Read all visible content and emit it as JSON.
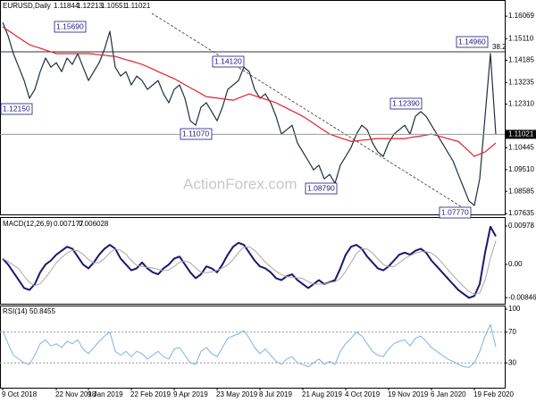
{
  "chart_data": [
    {
      "type": "line",
      "title": "EURUSD,Daily",
      "open": 1.11844,
      "high": 1.12213,
      "low": 1.10551,
      "ylim": [
        1.076,
        1.1676
      ],
      "yticks": [
        1.16069,
        {
          "value": 1.1511,
          "label": "1.15110"
        },
        1.14185,
        1.13235,
        {
          "value": 1.1231,
          "label": "1.12310"
        },
        1.10445,
        {
          "value": 1.0951,
          "label": "1.09510"
        },
        1.08585,
        1.07635
      ],
      "series": [
        {
          "color": "#1f2f3f",
          "values": [
            1.158,
            1.1523,
            1.1447,
            1.1389,
            1.1332,
            1.1256,
            1.1294,
            1.137,
            1.1428,
            1.1389,
            1.1408,
            1.137,
            1.1428,
            1.1401,
            1.1447,
            1.1389,
            1.1332,
            1.137,
            1.1408,
            1.1466,
            1.1542,
            1.1389,
            1.1351,
            1.137,
            1.1313,
            1.1351,
            1.1332,
            1.1294,
            1.1313,
            1.1332,
            1.1275,
            1.1237,
            1.1294,
            1.1313,
            1.1256,
            1.116,
            1.1141,
            1.1218,
            1.1237,
            1.1199,
            1.116,
            1.1218,
            1.1294,
            1.1313,
            1.1332,
            1.1389,
            1.137,
            1.1294,
            1.1256,
            1.1275,
            1.1237,
            1.1179,
            1.1103,
            1.1122,
            1.1141,
            1.1065,
            1.1027,
            1.0989,
            1.095,
            1.097,
            1.0912,
            1.0931,
            1.0893,
            1.097,
            1.1008,
            1.1046,
            1.1103,
            1.1141,
            1.1122,
            1.1065,
            1.1027,
            1.1008,
            1.1065,
            1.1103,
            1.1122,
            1.1141,
            1.1103,
            1.1179,
            1.1199,
            1.1179,
            1.1141,
            1.1103,
            1.1065,
            1.1027,
            1.0989,
            1.0931,
            1.0874,
            1.0817,
            1.0798,
            1.0912,
            1.1179,
            1.1447,
            1.11021
          ]
        },
        {
          "color": "#e8202a",
          "values": [
            1.1561,
            1.1546,
            1.1531,
            1.1515,
            1.15,
            1.1485,
            1.1477,
            1.147,
            1.1462,
            1.1455,
            1.1447,
            1.1447,
            1.1447,
            1.1447,
            1.1447,
            1.1447,
            1.1447,
            1.1445,
            1.1442,
            1.144,
            1.1437,
            1.1435,
            1.1428,
            1.1421,
            1.1415,
            1.1408,
            1.1401,
            1.1391,
            1.1381,
            1.137,
            1.136,
            1.135,
            1.134,
            1.1327,
            1.1314,
            1.1301,
            1.1289,
            1.1276,
            1.1263,
            1.126,
            1.1257,
            1.1254,
            1.1251,
            1.1248,
            1.1257,
            1.1266,
            1.1275,
            1.1267,
            1.126,
            1.1252,
            1.1245,
            1.1237,
            1.1225,
            1.1214,
            1.1202,
            1.1191,
            1.1179,
            1.1164,
            1.1149,
            1.1133,
            1.1118,
            1.1103,
            1.1095,
            1.1087,
            1.108,
            1.1072,
            1.1074,
            1.1077,
            1.1079,
            1.1082,
            1.1084,
            1.1084,
            1.1084,
            1.1084,
            1.1084,
            1.1084,
            1.1088,
            1.1092,
            1.1095,
            1.1099,
            1.1103,
            1.1097,
            1.1091,
            1.1084,
            1.1078,
            1.1072,
            1.1051,
            1.103,
            1.1008,
            1.1018,
            1.1027,
            1.1046,
            1.1065
          ]
        }
      ],
      "annotations": [
        "1.15690",
        "1.12150",
        "1.14120",
        "1.11070",
        "1.08790",
        "1.12390",
        "1.14960",
        "1.07770",
        "38.2"
      ],
      "watermark": "ActionForex.com"
    },
    {
      "type": "line",
      "title": "MACD(12,26,9)",
      "ylim": [
        -0.01,
        0.01183
      ],
      "yticks": [
        0.00978,
        {
          "value": 0,
          "label": "0.00"
        },
        -0.008464
      ],
      "series": [
        {
          "color": "#191970",
          "width": 2,
          "values": [
            0.0015,
            0,
            -0.002,
            -0.004,
            -0.006,
            -0.0065,
            -0.005,
            -0.002,
            0,
            0.001,
            0.0025,
            0.0035,
            0.0045,
            0.004,
            0.002,
            0,
            -0.001,
            0.0005,
            0.0025,
            0.004,
            0.005,
            0.004,
            0.0015,
            0,
            -0.0015,
            -0.001,
            0.0005,
            -0.001,
            -0.002,
            -0.0025,
            -0.001,
            0,
            0.0015,
            0.002,
            0,
            -0.002,
            -0.0035,
            -0.0025,
            -0.0005,
            -0.001,
            -0.002,
            0,
            0.0025,
            0.0045,
            0.0055,
            0.005,
            0.003,
            0.001,
            -0.0005,
            -0.001,
            -0.002,
            -0.0035,
            -0.004,
            -0.003,
            -0.0025,
            -0.004,
            -0.005,
            -0.006,
            -0.005,
            -0.004,
            -0.005,
            -0.0045,
            -0.004,
            -0.001,
            0.0025,
            0.0045,
            0.005,
            0.004,
            0.002,
            0.0005,
            -0.001,
            -0.0015,
            -0.0005,
            0.001,
            0.0025,
            0.003,
            0.0025,
            0.0035,
            0.004,
            0.003,
            0.001,
            -0.0005,
            -0.002,
            -0.0035,
            -0.005,
            -0.0065,
            -0.0075,
            -0.0085,
            -0.008,
            -0.005,
            0.003,
            0.0096,
            0.007177
          ]
        },
        {
          "color": "#a8a8a8",
          "width": 1,
          "values": [
            0.0015,
            0.00075,
            -0.00017,
            -0.0011,
            -0.003,
            -0.0046,
            -0.0054,
            -0.0049,
            -0.0034,
            -0.0015,
            0.0004,
            0.00175,
            0.0029,
            0.0036,
            0.0035,
            0.0026,
            0.00125,
            0.0004,
            0.0005,
            0.0015,
            0.003,
            0.0039,
            0.0036,
            0.0026,
            0.001,
            -0.00025,
            -0.0005,
            -0.00075,
            -0.0009,
            -0.00125,
            -0.0016,
            -0.0014,
            -0.0005,
            0.0006,
            0.0009,
            0.0004,
            -0.0009,
            -0.002,
            -0.0021,
            -0.0019,
            -0.0015,
            -0.0009,
            -0.0001,
            0.00125,
            0.0031,
            0.0044,
            0.0045,
            0.0036,
            0.0021,
            0.0006,
            -0.0006,
            -0.00175,
            -0.0026,
            -0.0031,
            -0.00325,
            -0.0034,
            -0.0036,
            -0.0044,
            -0.005,
            -0.005,
            -0.005,
            -0.0046,
            -0.0044,
            -0.0036,
            -0.00175,
            0.0005,
            0.00275,
            0.004,
            0.0039,
            0.0029,
            0.0014,
            0,
            -0.0006,
            -0.0005,
            0.0004,
            0.0015,
            0.00225,
            0.0029,
            0.00325,
            0.00325,
            0.0029,
            0.0019,
            0.0004,
            -0.00125,
            -0.00275,
            -0.00425,
            -0.0056,
            -0.0069,
            -0.0076,
            -0.00725,
            -0.004,
            0.0015,
            0.006028
          ]
        }
      ]
    },
    {
      "type": "line",
      "title": "RSI(14)",
      "ylim": [
        0,
        100
      ],
      "yticks": [
        100,
        70,
        30
      ],
      "grid": "dashed",
      "categories": [
        "9 Oct 2018",
        null,
        null,
        null,
        null,
        null,
        null,
        null,
        null,
        null,
        "22 Nov 2018",
        null,
        null,
        null,
        null,
        null,
        "9 Jan 2019",
        null,
        null,
        null,
        null,
        null,
        null,
        null,
        "22 Feb 2019",
        null,
        null,
        null,
        null,
        null,
        null,
        null,
        "9 Apr 2019",
        null,
        null,
        null,
        null,
        null,
        null,
        null,
        "23 May 2019",
        null,
        null,
        null,
        null,
        null,
        null,
        null,
        "8 Jul 2019",
        null,
        null,
        null,
        null,
        null,
        null,
        null,
        "21 Aug 2019",
        null,
        null,
        null,
        null,
        null,
        null,
        null,
        "4 Oct 2019",
        null,
        null,
        null,
        null,
        null,
        null,
        null,
        "19 Nov 2019",
        null,
        null,
        null,
        null,
        null,
        null,
        null,
        "6 Jan 2020",
        null,
        null,
        null,
        null,
        null,
        null,
        null,
        "19 Feb 2020",
        null,
        null,
        null,
        null
      ],
      "series": [
        {
          "color": "#7fb2e5",
          "width": 1,
          "values": [
            72,
            55,
            40,
            35,
            30,
            28,
            40,
            55,
            60,
            52,
            55,
            50,
            58,
            55,
            60,
            48,
            42,
            50,
            58,
            65,
            70,
            45,
            40,
            45,
            38,
            45,
            42,
            35,
            40,
            45,
            38,
            35,
            48,
            50,
            40,
            30,
            28,
            45,
            50,
            42,
            38,
            50,
            62,
            65,
            68,
            72,
            62,
            50,
            42,
            48,
            40,
            32,
            28,
            35,
            38,
            30,
            28,
            25,
            30,
            35,
            28,
            32,
            28,
            45,
            55,
            62,
            70,
            65,
            55,
            45,
            40,
            38,
            48,
            55,
            58,
            60,
            52,
            62,
            65,
            58,
            50,
            45,
            40,
            35,
            32,
            28,
            25,
            24,
            30,
            45,
            65,
            80,
            50.8455
          ]
        }
      ]
    }
  ]
}
